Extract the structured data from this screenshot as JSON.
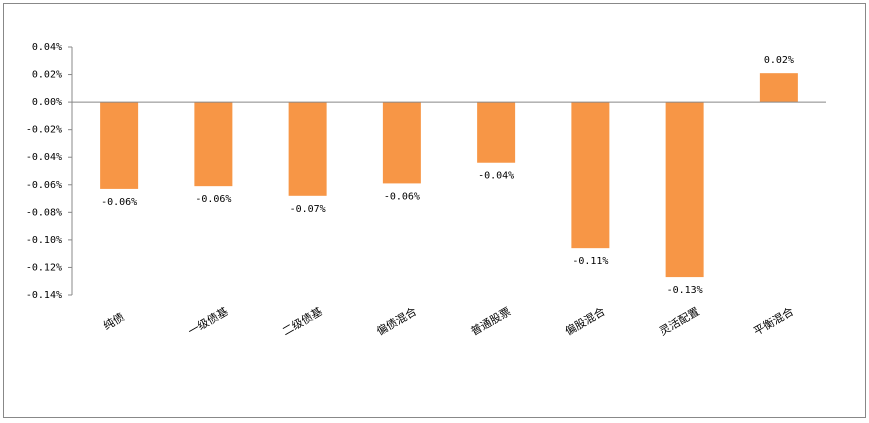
{
  "chart_data": {
    "type": "bar",
    "categories": [
      "纯债",
      "一级债基",
      "二级债基",
      "偏债混合",
      "普通股票",
      "偏股混合",
      "灵活配置",
      "平衡混合"
    ],
    "values": [
      -0.063,
      -0.061,
      -0.068,
      -0.059,
      -0.044,
      -0.106,
      -0.127,
      0.021
    ],
    "value_labels": [
      "-0.06%",
      "-0.06%",
      "-0.07%",
      "-0.06%",
      "-0.04%",
      "-0.11%",
      "-0.13%",
      "0.02%"
    ],
    "color": "#f79646",
    "ylim": [
      -0.14,
      0.04
    ],
    "yticks": [
      {
        "value": 0.04,
        "label": "0.04%"
      },
      {
        "value": 0.02,
        "label": "0.02%"
      },
      {
        "value": 0,
        "label": "0.00%"
      },
      {
        "value": -0.02,
        "label": "-0.02%"
      },
      {
        "value": -0.04,
        "label": "-0.04%"
      },
      {
        "value": -0.06,
        "label": "-0.06%"
      },
      {
        "value": -0.08,
        "label": "-0.08%"
      },
      {
        "value": -0.1,
        "label": "-0.10%"
      },
      {
        "value": -0.12,
        "label": "-0.12%"
      },
      {
        "value": -0.14,
        "label": "-0.14%"
      }
    ]
  }
}
